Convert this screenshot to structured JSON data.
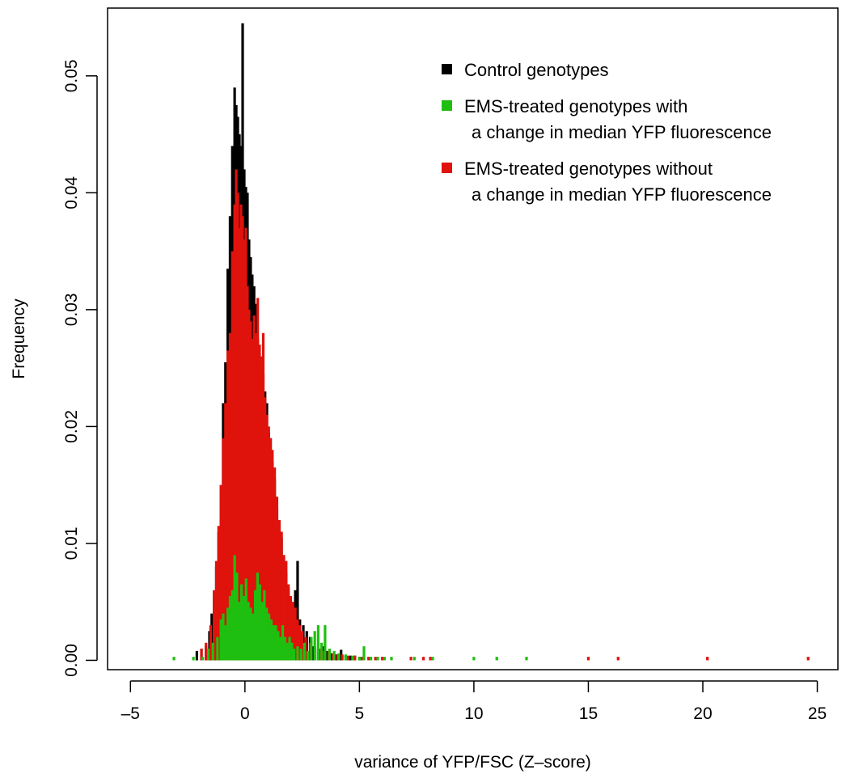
{
  "chart_data": {
    "type": "bar",
    "xlabel": "variance of YFP/FSC (Z–score)",
    "ylabel": "Frequency",
    "xlim": [
      -6.0,
      25.9
    ],
    "ylim": [
      -0.0008,
      0.0558
    ],
    "x_ticks": [
      -5,
      0,
      5,
      10,
      15,
      20,
      25
    ],
    "x_tick_labels": [
      "–5",
      "0",
      "5",
      "10",
      "15",
      "20",
      "25"
    ],
    "y_ticks": [
      0.0,
      0.01,
      0.02,
      0.03,
      0.04,
      0.05
    ],
    "y_tick_labels": [
      "0.00",
      "0.01",
      "0.02",
      "0.03",
      "0.04",
      "0.05"
    ],
    "grid": false,
    "legend_position": "top-right",
    "legend": [
      {
        "label": "Control genotypes",
        "color": "#000000"
      },
      {
        "label": "EMS-treated genotypes with\na change in median YFP fluorescence",
        "color": "#1fbf10"
      },
      {
        "label": "EMS-treated genotypes without\na change in median YFP fluorescence",
        "color": "#e0120c"
      }
    ],
    "series": [
      {
        "color": "#000000",
        "points": [
          [
            -2.1,
            0.0008
          ],
          [
            -1.9,
            0.001
          ],
          [
            -1.7,
            0.0012
          ],
          [
            -1.55,
            0.0025
          ],
          [
            -1.45,
            0.004
          ],
          [
            -1.35,
            0.0055
          ],
          [
            -1.25,
            0.008
          ],
          [
            -1.15,
            0.011
          ],
          [
            -1.05,
            0.0145
          ],
          [
            -0.95,
            0.022
          ],
          [
            -0.85,
            0.0255
          ],
          [
            -0.75,
            0.0335
          ],
          [
            -0.65,
            0.038
          ],
          [
            -0.55,
            0.044
          ],
          [
            -0.45,
            0.049
          ],
          [
            -0.38,
            0.0475
          ],
          [
            -0.31,
            0.0465
          ],
          [
            -0.24,
            0.045
          ],
          [
            -0.17,
            0.044
          ],
          [
            -0.1,
            0.0545
          ],
          [
            -0.03,
            0.042
          ],
          [
            0.04,
            0.0405
          ],
          [
            0.11,
            0.04
          ],
          [
            0.18,
            0.036
          ],
          [
            0.25,
            0.0345
          ],
          [
            0.32,
            0.033
          ],
          [
            0.4,
            0.032
          ],
          [
            0.48,
            0.0305
          ],
          [
            0.56,
            0.0275
          ],
          [
            0.64,
            0.026
          ],
          [
            0.72,
            0.025
          ],
          [
            0.8,
            0.0245
          ],
          [
            0.88,
            0.023
          ],
          [
            0.96,
            0.022
          ],
          [
            1.04,
            0.0195
          ],
          [
            1.12,
            0.019
          ],
          [
            1.2,
            0.017
          ],
          [
            1.3,
            0.0155
          ],
          [
            1.4,
            0.013
          ],
          [
            1.5,
            0.012
          ],
          [
            1.6,
            0.0105
          ],
          [
            1.7,
            0.009
          ],
          [
            1.8,
            0.0075
          ],
          [
            1.9,
            0.0062
          ],
          [
            2.0,
            0.0052
          ],
          [
            2.1,
            0.0045
          ],
          [
            2.2,
            0.006
          ],
          [
            2.3,
            0.0085
          ],
          [
            2.4,
            0.0035
          ],
          [
            2.55,
            0.003
          ],
          [
            2.7,
            0.0025
          ],
          [
            2.85,
            0.002
          ],
          [
            3.0,
            0.0012
          ],
          [
            3.2,
            0.001
          ],
          [
            3.4,
            0.0012
          ],
          [
            3.6,
            0.0008
          ],
          [
            3.8,
            0.0006
          ],
          [
            4.0,
            0.0005
          ],
          [
            4.2,
            0.0009
          ],
          [
            4.4,
            0.0004
          ],
          [
            4.6,
            0.0004
          ],
          [
            4.8,
            0.0004
          ],
          [
            5.0,
            0.0003
          ]
        ]
      },
      {
        "color": "#e0120c",
        "points": [
          [
            -1.9,
            0.001
          ],
          [
            -1.7,
            0.0015
          ],
          [
            -1.5,
            0.003
          ],
          [
            -1.35,
            0.006
          ],
          [
            -1.25,
            0.0085
          ],
          [
            -1.15,
            0.0115
          ],
          [
            -1.05,
            0.015
          ],
          [
            -0.95,
            0.019
          ],
          [
            -0.85,
            0.022
          ],
          [
            -0.75,
            0.0265
          ],
          [
            -0.65,
            0.028
          ],
          [
            -0.55,
            0.035
          ],
          [
            -0.45,
            0.039
          ],
          [
            -0.38,
            0.042
          ],
          [
            -0.31,
            0.04
          ],
          [
            -0.24,
            0.037
          ],
          [
            -0.17,
            0.039
          ],
          [
            -0.1,
            0.038
          ],
          [
            -0.03,
            0.036
          ],
          [
            0.04,
            0.037
          ],
          [
            0.11,
            0.032
          ],
          [
            0.18,
            0.03
          ],
          [
            0.25,
            0.029
          ],
          [
            0.32,
            0.0275
          ],
          [
            0.4,
            0.0295
          ],
          [
            0.48,
            0.028
          ],
          [
            0.56,
            0.031
          ],
          [
            0.64,
            0.027
          ],
          [
            0.72,
            0.026
          ],
          [
            0.8,
            0.028
          ],
          [
            0.88,
            0.0225
          ],
          [
            0.96,
            0.021
          ],
          [
            1.04,
            0.02
          ],
          [
            1.12,
            0.019
          ],
          [
            1.2,
            0.018
          ],
          [
            1.3,
            0.0165
          ],
          [
            1.4,
            0.014
          ],
          [
            1.5,
            0.012
          ],
          [
            1.6,
            0.011
          ],
          [
            1.7,
            0.009
          ],
          [
            1.8,
            0.0085
          ],
          [
            1.9,
            0.0065
          ],
          [
            2.0,
            0.0055
          ],
          [
            2.1,
            0.005
          ],
          [
            2.2,
            0.0045
          ],
          [
            2.3,
            0.0035
          ],
          [
            2.4,
            0.003
          ],
          [
            2.5,
            0.0025
          ],
          [
            2.65,
            0.002
          ],
          [
            2.85,
            0.0015
          ],
          [
            3.05,
            0.0012
          ],
          [
            3.25,
            0.001
          ],
          [
            3.45,
            0.0008
          ],
          [
            3.65,
            0.0008
          ],
          [
            3.85,
            0.0006
          ],
          [
            4.05,
            0.0005
          ],
          [
            4.25,
            0.0005
          ],
          [
            4.5,
            0.0004
          ],
          [
            4.8,
            0.0004
          ],
          [
            5.1,
            0.0003
          ],
          [
            5.4,
            0.0003
          ],
          [
            5.7,
            0.0003
          ],
          [
            6.0,
            0.0003
          ],
          [
            7.25,
            0.0003
          ],
          [
            7.8,
            0.0003
          ],
          [
            8.1,
            0.0003
          ],
          [
            15.0,
            0.0003
          ],
          [
            16.3,
            0.0003
          ],
          [
            20.2,
            0.0003
          ],
          [
            24.6,
            0.0003
          ]
        ]
      },
      {
        "color": "#1fbf10",
        "points": [
          [
            -3.1,
            0.0003
          ],
          [
            -2.25,
            0.0003
          ],
          [
            -1.85,
            0.0003
          ],
          [
            -1.6,
            0.001
          ],
          [
            -1.4,
            0.0015
          ],
          [
            -1.2,
            0.002
          ],
          [
            -1.05,
            0.0035
          ],
          [
            -0.95,
            0.004
          ],
          [
            -0.85,
            0.003
          ],
          [
            -0.75,
            0.0045
          ],
          [
            -0.65,
            0.0055
          ],
          [
            -0.55,
            0.006
          ],
          [
            -0.45,
            0.009
          ],
          [
            -0.35,
            0.0075
          ],
          [
            -0.25,
            0.005
          ],
          [
            -0.15,
            0.0065
          ],
          [
            -0.05,
            0.0055
          ],
          [
            0.05,
            0.007
          ],
          [
            0.15,
            0.005
          ],
          [
            0.25,
            0.0045
          ],
          [
            0.35,
            0.004
          ],
          [
            0.45,
            0.006
          ],
          [
            0.55,
            0.0075
          ],
          [
            0.65,
            0.0065
          ],
          [
            0.75,
            0.005
          ],
          [
            0.85,
            0.006
          ],
          [
            0.95,
            0.0045
          ],
          [
            1.05,
            0.004
          ],
          [
            1.15,
            0.0035
          ],
          [
            1.25,
            0.003
          ],
          [
            1.35,
            0.003
          ],
          [
            1.45,
            0.0025
          ],
          [
            1.55,
            0.002
          ],
          [
            1.65,
            0.003
          ],
          [
            1.75,
            0.002
          ],
          [
            1.85,
            0.0015
          ],
          [
            1.95,
            0.002
          ],
          [
            2.05,
            0.0015
          ],
          [
            2.15,
            0.001
          ],
          [
            2.3,
            0.0012
          ],
          [
            2.45,
            0.001
          ],
          [
            2.6,
            0.0015
          ],
          [
            2.75,
            0.0008
          ],
          [
            2.9,
            0.002
          ],
          [
            3.05,
            0.0025
          ],
          [
            3.2,
            0.003
          ],
          [
            3.35,
            0.0015
          ],
          [
            3.5,
            0.003
          ],
          [
            3.7,
            0.001
          ],
          [
            3.9,
            0.0008
          ],
          [
            4.1,
            0.0006
          ],
          [
            4.4,
            0.0005
          ],
          [
            4.7,
            0.0004
          ],
          [
            5.0,
            0.0003
          ],
          [
            5.2,
            0.0012
          ],
          [
            5.5,
            0.0003
          ],
          [
            5.8,
            0.0003
          ],
          [
            6.1,
            0.0003
          ],
          [
            6.4,
            0.0003
          ],
          [
            7.4,
            0.0003
          ],
          [
            8.2,
            0.0003
          ],
          [
            10.0,
            0.0003
          ],
          [
            11.0,
            0.0003
          ],
          [
            12.3,
            0.0003
          ]
        ]
      }
    ]
  }
}
